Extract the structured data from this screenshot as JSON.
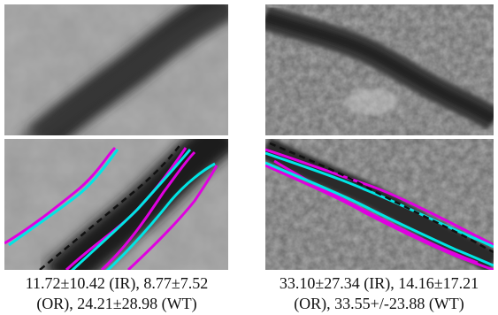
{
  "figure": {
    "captions": [
      {
        "line1": "11.72±10.42 (IR), 8.77±7.52",
        "line2": "(OR), 24.21±28.98 (WT)"
      },
      {
        "line1": "33.10±27.34 (IR), 14.16±17.21",
        "line2": "(OR), 33.55+/-23.88 (WT)"
      }
    ],
    "colors": {
      "inner_outline": "#00e5e5",
      "outer_outline": "#e000e0",
      "centerline": "#111111"
    }
  }
}
